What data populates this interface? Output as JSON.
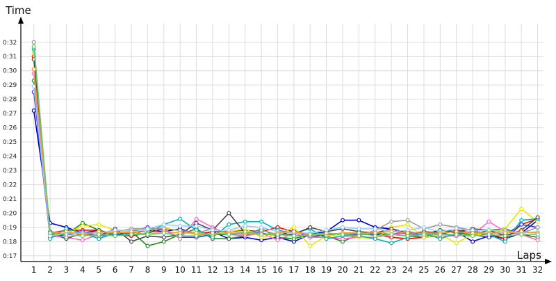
{
  "chart_data": {
    "type": "line",
    "title": "",
    "xlabel": "Laps",
    "ylabel": "Time",
    "x": [
      1,
      2,
      3,
      4,
      5,
      6,
      7,
      8,
      9,
      10,
      11,
      12,
      13,
      14,
      15,
      16,
      17,
      18,
      19,
      20,
      21,
      22,
      23,
      24,
      25,
      26,
      27,
      28,
      29,
      30,
      31,
      32
    ],
    "x_tick_labels": [
      "1",
      "2",
      "3",
      "4",
      "5",
      "6",
      "7",
      "8",
      "9",
      "10",
      "11",
      "12",
      "13",
      "14",
      "15",
      "16",
      "17",
      "18",
      "19",
      "20",
      "21",
      "22",
      "23",
      "24",
      "25",
      "26",
      "27",
      "28",
      "29",
      "30",
      "31",
      "32"
    ],
    "y_tick_labels": [
      "0:17",
      "0:18",
      "0:19",
      "0:20",
      "0:21",
      "0:22",
      "0:23",
      "0:24",
      "0:25",
      "0:26",
      "0:27",
      "0:28",
      "0:29",
      "0:30",
      "0:31",
      "0:32"
    ],
    "y_tick_values": [
      17,
      18,
      19,
      20,
      21,
      22,
      23,
      24,
      25,
      26,
      27,
      28,
      29,
      30,
      31,
      32
    ],
    "y_unit": "seconds",
    "ylim": [
      16.6,
      33.6
    ],
    "xlim": [
      0.2,
      32.7
    ],
    "grid": true,
    "legend": "none",
    "series": [
      {
        "color": "#0000cc",
        "values": [
          27.2,
          19.3,
          19.0,
          18.6,
          18.8,
          18.5,
          18.6,
          18.8,
          18.7,
          18.9,
          18.5,
          18.7,
          18.2,
          18.3,
          18.1,
          18.3,
          18.0,
          18.5,
          18.7,
          19.5,
          19.5,
          19.0,
          18.9,
          18.6,
          18.5,
          18.8,
          18.7,
          18.0,
          18.4,
          18.2,
          18.6,
          19.5
        ]
      },
      {
        "color": "#ff0000",
        "values": [
          31.0,
          18.6,
          18.8,
          18.8,
          18.8,
          18.5,
          18.4,
          18.6,
          18.9,
          18.8,
          18.5,
          18.7,
          18.7,
          18.8,
          18.7,
          19.0,
          18.7,
          18.5,
          18.4,
          18.6,
          18.6,
          18.5,
          18.3,
          18.2,
          18.3,
          18.5,
          18.8,
          18.6,
          18.5,
          18.2,
          19.2,
          19.6
        ]
      },
      {
        "color": "#3333ff",
        "values": [
          28.5,
          18.3,
          18.5,
          18.7,
          18.4,
          18.5,
          18.7,
          19.0,
          18.8,
          18.3,
          18.3,
          18.5,
          18.5,
          18.6,
          18.6,
          18.4,
          18.8,
          18.3,
          18.5,
          18.5,
          18.5,
          18.5,
          18.5,
          18.7,
          18.5,
          18.6,
          18.4,
          18.5,
          18.3,
          18.5,
          19.2,
          19.0
        ]
      },
      {
        "color": "#1a8c1a",
        "values": [
          29.3,
          18.7,
          18.5,
          19.3,
          18.8,
          18.4,
          18.7,
          17.7,
          18.0,
          18.5,
          18.9,
          18.2,
          18.2,
          18.4,
          18.9,
          18.3,
          18.2,
          18.5,
          18.4,
          18.0,
          18.5,
          18.6,
          18.5,
          18.4,
          18.3,
          18.8,
          18.6,
          18.5,
          18.8,
          18.9,
          18.5,
          18.3
        ]
      },
      {
        "color": "#ff66cc",
        "values": [
          29.8,
          18.4,
          18.3,
          18.1,
          18.5,
          18.7,
          18.6,
          18.9,
          18.9,
          18.2,
          19.6,
          19.0,
          18.5,
          18.4,
          18.6,
          18.1,
          18.6,
          18.3,
          18.3,
          18.2,
          18.3,
          18.3,
          18.5,
          18.6,
          18.3,
          18.4,
          18.4,
          18.5,
          19.4,
          18.7,
          18.5,
          18.1
        ]
      },
      {
        "color": "#e6e600",
        "values": [
          31.2,
          18.5,
          18.6,
          19.1,
          19.2,
          18.8,
          18.7,
          18.8,
          19.0,
          18.7,
          18.5,
          18.5,
          18.7,
          18.9,
          18.3,
          18.5,
          19.0,
          17.7,
          18.4,
          18.5,
          18.3,
          18.2,
          19.0,
          19.2,
          18.3,
          18.5,
          17.9,
          18.5,
          18.6,
          18.9,
          20.3,
          19.4
        ]
      },
      {
        "color": "#00b3b3",
        "values": [
          31.5,
          18.2,
          18.9,
          18.6,
          18.2,
          18.6,
          18.5,
          18.6,
          19.2,
          19.6,
          18.8,
          18.3,
          19.2,
          19.4,
          19.4,
          18.8,
          18.6,
          18.9,
          18.2,
          18.4,
          18.4,
          18.2,
          17.9,
          18.3,
          18.6,
          18.2,
          18.6,
          18.7,
          18.5,
          18.0,
          19.5,
          19.6
        ]
      },
      {
        "color": "#444444",
        "values": [
          30.8,
          18.6,
          18.2,
          18.6,
          18.4,
          18.9,
          18.0,
          18.4,
          18.3,
          18.5,
          19.3,
          18.8,
          20.0,
          18.6,
          18.5,
          18.5,
          18.5,
          19.0,
          18.7,
          18.9,
          18.7,
          18.6,
          18.9,
          18.5,
          18.7,
          18.6,
          18.7,
          18.9,
          18.8,
          18.4,
          18.8,
          19.7
        ]
      },
      {
        "color": "#999999",
        "values": [
          32.0,
          18.5,
          18.3,
          18.5,
          18.4,
          18.7,
          18.9,
          18.9,
          18.9,
          18.8,
          18.6,
          18.9,
          18.6,
          18.5,
          18.8,
          18.5,
          18.4,
          18.4,
          18.6,
          18.5,
          18.4,
          18.8,
          19.4,
          19.5,
          18.9,
          19.2,
          19.0,
          18.8,
          18.5,
          18.8,
          18.6,
          19.0
        ]
      },
      {
        "color": "#99ccff",
        "values": [
          28.9,
          18.4,
          18.6,
          18.6,
          18.6,
          18.8,
          18.8,
          18.9,
          19.2,
          19.1,
          19.1,
          18.8,
          18.8,
          19.1,
          19.0,
          18.7,
          18.6,
          18.6,
          18.8,
          19.0,
          18.9,
          18.9,
          18.7,
          18.8,
          19.0,
          18.7,
          18.9,
          18.8,
          18.8,
          18.7,
          18.6,
          18.7
        ]
      },
      {
        "color": "#ff9933",
        "values": [
          30.1,
          18.6,
          18.7,
          18.5,
          18.7,
          18.6,
          18.7,
          18.5,
          18.7,
          18.6,
          18.6,
          18.5,
          18.6,
          18.6,
          18.5,
          18.6,
          18.7,
          18.5,
          18.5,
          18.6,
          18.6,
          18.6,
          18.7,
          18.6,
          18.6,
          18.6,
          18.7,
          18.6,
          18.6,
          18.6,
          18.7,
          18.6
        ]
      },
      {
        "color": "#66cc66",
        "values": [
          31.7,
          18.6,
          18.5,
          18.4,
          18.5,
          18.4,
          18.5,
          18.5,
          18.6,
          18.4,
          18.4,
          18.6,
          18.5,
          18.7,
          18.5,
          18.5,
          18.4,
          18.5,
          18.6,
          18.5,
          18.6,
          18.4,
          18.5,
          18.4,
          18.5,
          18.5,
          18.5,
          18.4,
          18.5,
          18.4,
          18.5,
          18.5
        ]
      }
    ]
  }
}
